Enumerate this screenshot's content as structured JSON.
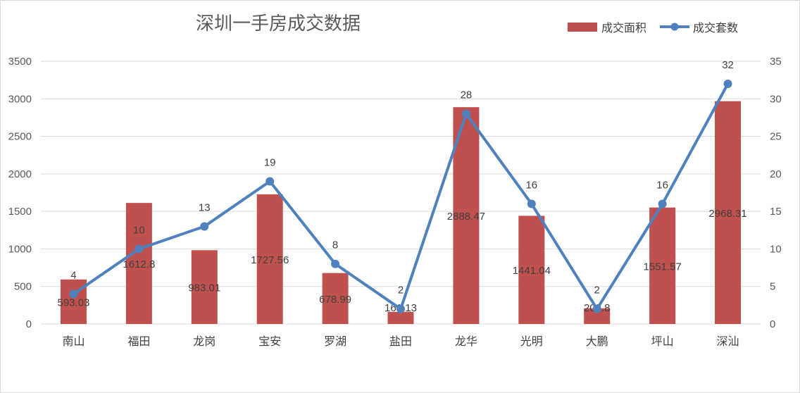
{
  "chart_data": {
    "type": "bar+line",
    "title": "深圳一手房成交数据",
    "categories": [
      "南山",
      "福田",
      "龙岗",
      "宝安",
      "罗湖",
      "盐田",
      "龙华",
      "光明",
      "大鹏",
      "坪山",
      "深汕"
    ],
    "series": [
      {
        "name": "成交面积",
        "type": "bar",
        "axis": "left",
        "color": "#c0504d",
        "values": [
          593.03,
          1612.8,
          983.01,
          1727.56,
          678.99,
          161.13,
          2888.47,
          1441.04,
          208.8,
          1551.57,
          2968.31
        ],
        "labels": [
          "593.03",
          "1612.8",
          "983.01",
          "1727.56",
          "678.99",
          "161.13",
          "2888.47",
          "1441.04",
          "208.8",
          "1551.57",
          "2968.31"
        ]
      },
      {
        "name": "成交套数",
        "type": "line",
        "axis": "right",
        "color": "#4f81bd",
        "values": [
          4,
          10,
          13,
          19,
          8,
          2,
          28,
          16,
          2,
          16,
          32
        ],
        "labels": [
          "4",
          "10",
          "13",
          "19",
          "8",
          "2",
          "28",
          "16",
          "2",
          "16",
          "32"
        ]
      }
    ],
    "y_left": {
      "min": 0,
      "max": 3500,
      "ticks": [
        "0",
        "500",
        "1000",
        "1500",
        "2000",
        "2500",
        "3000",
        "3500"
      ]
    },
    "y_right": {
      "min": 0,
      "max": 35,
      "ticks": [
        "0",
        "5",
        "10",
        "15",
        "20",
        "25",
        "30",
        "35"
      ]
    },
    "grid": true,
    "legend": "top-right"
  }
}
